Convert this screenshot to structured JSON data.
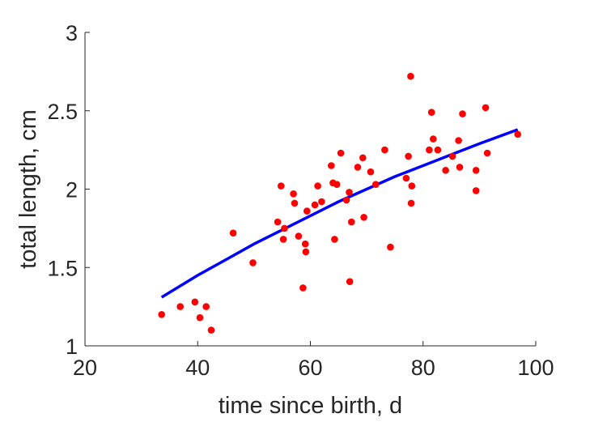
{
  "chart_data": {
    "type": "scatter",
    "title": "",
    "xlabel": "time since birth, d",
    "ylabel": "total length, cm",
    "xlim": [
      20,
      100
    ],
    "ylim": [
      1,
      3
    ],
    "xticks": [
      20,
      40,
      60,
      80,
      100
    ],
    "yticks": [
      1,
      1.5,
      2,
      2.5,
      3
    ],
    "xtick_labels": [
      "20",
      "40",
      "60",
      "80",
      "100"
    ],
    "ytick_labels": [
      "1",
      "1.5",
      "2",
      "2.5",
      "3"
    ],
    "grid": false,
    "legend": "none",
    "series": [
      {
        "kind": "scatter",
        "color": "#ff0000",
        "points": [
          [
            33.6,
            1.2
          ],
          [
            36.9,
            1.25
          ],
          [
            39.5,
            1.28
          ],
          [
            40.4,
            1.18
          ],
          [
            41.5,
            1.25
          ],
          [
            42.4,
            1.1
          ],
          [
            46.3,
            1.72
          ],
          [
            49.8,
            1.53
          ],
          [
            54.2,
            1.79
          ],
          [
            54.8,
            2.02
          ],
          [
            55.2,
            1.68
          ],
          [
            55.4,
            1.75
          ],
          [
            57.0,
            1.97
          ],
          [
            57.2,
            1.91
          ],
          [
            57.9,
            1.7
          ],
          [
            58.7,
            1.37
          ],
          [
            59.1,
            1.65
          ],
          [
            59.2,
            1.6
          ],
          [
            59.4,
            1.86
          ],
          [
            60.8,
            1.9
          ],
          [
            61.3,
            2.02
          ],
          [
            62.0,
            1.92
          ],
          [
            63.7,
            2.15
          ],
          [
            64.0,
            2.04
          ],
          [
            64.3,
            1.68
          ],
          [
            64.7,
            2.03
          ],
          [
            65.4,
            2.23
          ],
          [
            66.4,
            1.93
          ],
          [
            66.9,
            1.98
          ],
          [
            67.0,
            1.41
          ],
          [
            67.3,
            1.79
          ],
          [
            68.4,
            2.14
          ],
          [
            69.3,
            2.2
          ],
          [
            69.5,
            1.82
          ],
          [
            70.7,
            2.11
          ],
          [
            71.6,
            2.03
          ],
          [
            73.2,
            2.25
          ],
          [
            74.2,
            1.63
          ],
          [
            77.0,
            2.07
          ],
          [
            77.4,
            2.21
          ],
          [
            77.8,
            2.72
          ],
          [
            77.9,
            1.91
          ],
          [
            78.0,
            2.02
          ],
          [
            81.1,
            2.25
          ],
          [
            81.5,
            2.49
          ],
          [
            81.8,
            2.32
          ],
          [
            82.6,
            2.25
          ],
          [
            84.0,
            2.12
          ],
          [
            85.2,
            2.21
          ],
          [
            86.3,
            2.31
          ],
          [
            86.5,
            2.14
          ],
          [
            87.0,
            2.48
          ],
          [
            89.4,
            2.12
          ],
          [
            89.4,
            1.99
          ],
          [
            91.1,
            2.52
          ],
          [
            91.4,
            2.23
          ],
          [
            96.8,
            2.35
          ]
        ]
      },
      {
        "kind": "line",
        "color": "#0000ff",
        "points": [
          [
            33.6,
            1.31
          ],
          [
            40,
            1.45
          ],
          [
            45,
            1.55
          ],
          [
            50,
            1.65
          ],
          [
            55,
            1.74
          ],
          [
            60,
            1.83
          ],
          [
            65,
            1.92
          ],
          [
            70,
            2.0
          ],
          [
            75,
            2.08
          ],
          [
            80,
            2.15
          ],
          [
            85,
            2.22
          ],
          [
            90,
            2.29
          ],
          [
            96.8,
            2.38
          ]
        ]
      }
    ]
  }
}
